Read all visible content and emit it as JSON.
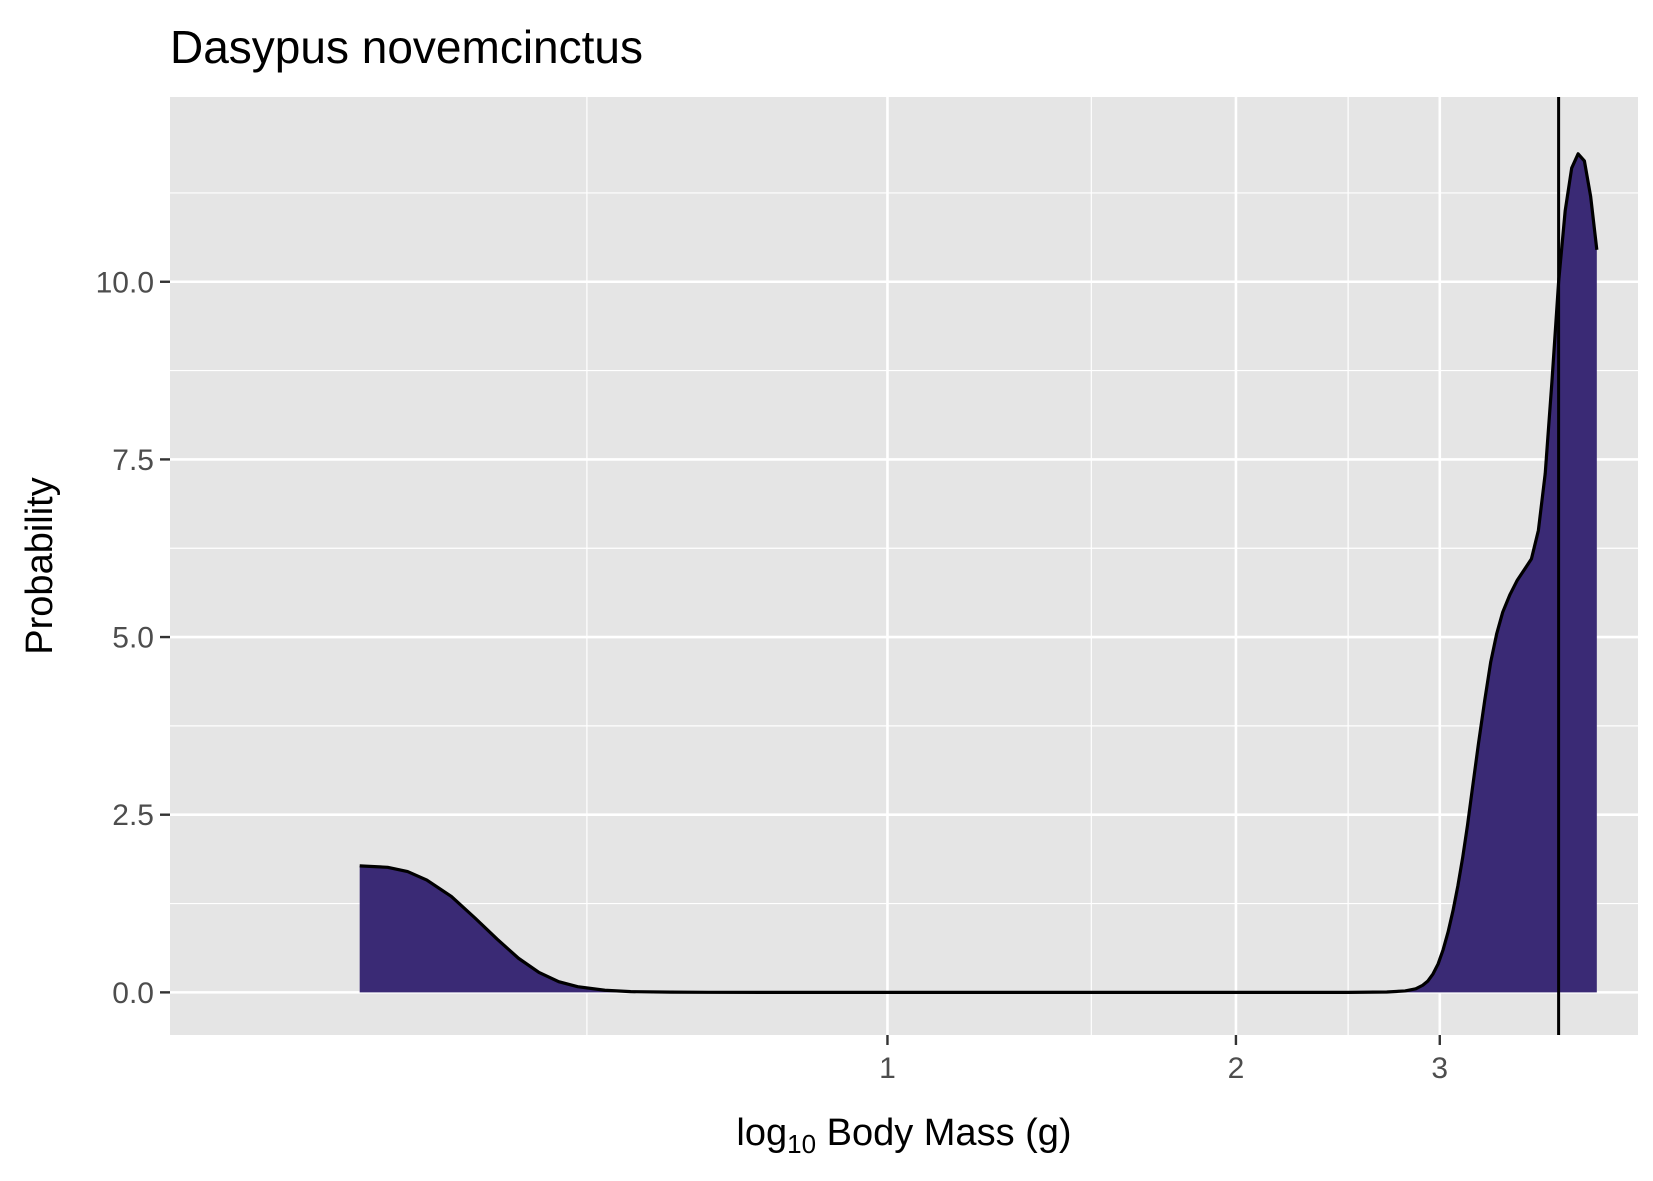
{
  "chart_data": {
    "type": "area",
    "title": "Dasypus novemcinctus",
    "xlabel": {
      "prefix": "log",
      "subscript": "10",
      "suffix": " Body Mass (g)"
    },
    "ylabel": "Probability",
    "x_scale": "log10",
    "xlim": [
      0.24,
      4.45
    ],
    "ylim": [
      -0.6,
      12.6
    ],
    "x_ticks": [
      {
        "value": 1,
        "label": "1"
      },
      {
        "value": 2,
        "label": "2"
      },
      {
        "value": 3,
        "label": "3"
      }
    ],
    "x_minor_gridlines": [
      0.55,
      1.5,
      2.5
    ],
    "y_ticks": [
      {
        "value": 0,
        "label": "0.0"
      },
      {
        "value": 2.5,
        "label": "2.5"
      },
      {
        "value": 5,
        "label": "5.0"
      },
      {
        "value": 7.5,
        "label": "7.5"
      },
      {
        "value": 10,
        "label": "10.0"
      }
    ],
    "y_minor_gridlines": [
      1.25,
      3.75,
      6.25,
      8.75,
      11.25
    ],
    "grid": true,
    "reference_line_x": 3.8,
    "fill_color": "#3a2a75",
    "line_color": "#000000",
    "panel_color": "#e5e5e5",
    "series": [
      {
        "x": [
          0.35,
          0.37,
          0.385,
          0.4,
          0.42,
          0.44,
          0.46,
          0.48,
          0.5,
          0.52,
          0.54,
          0.57,
          0.6,
          0.65,
          0.7,
          0.8,
          1.0,
          1.3,
          1.7,
          2.0,
          2.3,
          2.5,
          2.7,
          2.8,
          2.86,
          2.9,
          2.93,
          2.96,
          2.99,
          3.02,
          3.05,
          3.08,
          3.11,
          3.14,
          3.17,
          3.2,
          3.24,
          3.28,
          3.32,
          3.36,
          3.4,
          3.45,
          3.5,
          3.55,
          3.6,
          3.65,
          3.7,
          3.75,
          3.8,
          3.85,
          3.9,
          3.95,
          4.0,
          4.05,
          4.1
        ],
        "y": [
          1.78,
          1.76,
          1.7,
          1.58,
          1.35,
          1.05,
          0.75,
          0.48,
          0.28,
          0.15,
          0.08,
          0.03,
          0.01,
          0.003,
          0.001,
          0,
          0,
          0,
          0,
          0,
          0,
          0,
          0.005,
          0.02,
          0.05,
          0.1,
          0.16,
          0.26,
          0.4,
          0.6,
          0.85,
          1.15,
          1.5,
          1.9,
          2.35,
          2.85,
          3.5,
          4.1,
          4.65,
          5.05,
          5.35,
          5.6,
          5.8,
          5.95,
          6.1,
          6.5,
          7.3,
          8.6,
          10.0,
          11.0,
          11.6,
          11.8,
          11.7,
          11.2,
          10.45
        ]
      }
    ]
  }
}
